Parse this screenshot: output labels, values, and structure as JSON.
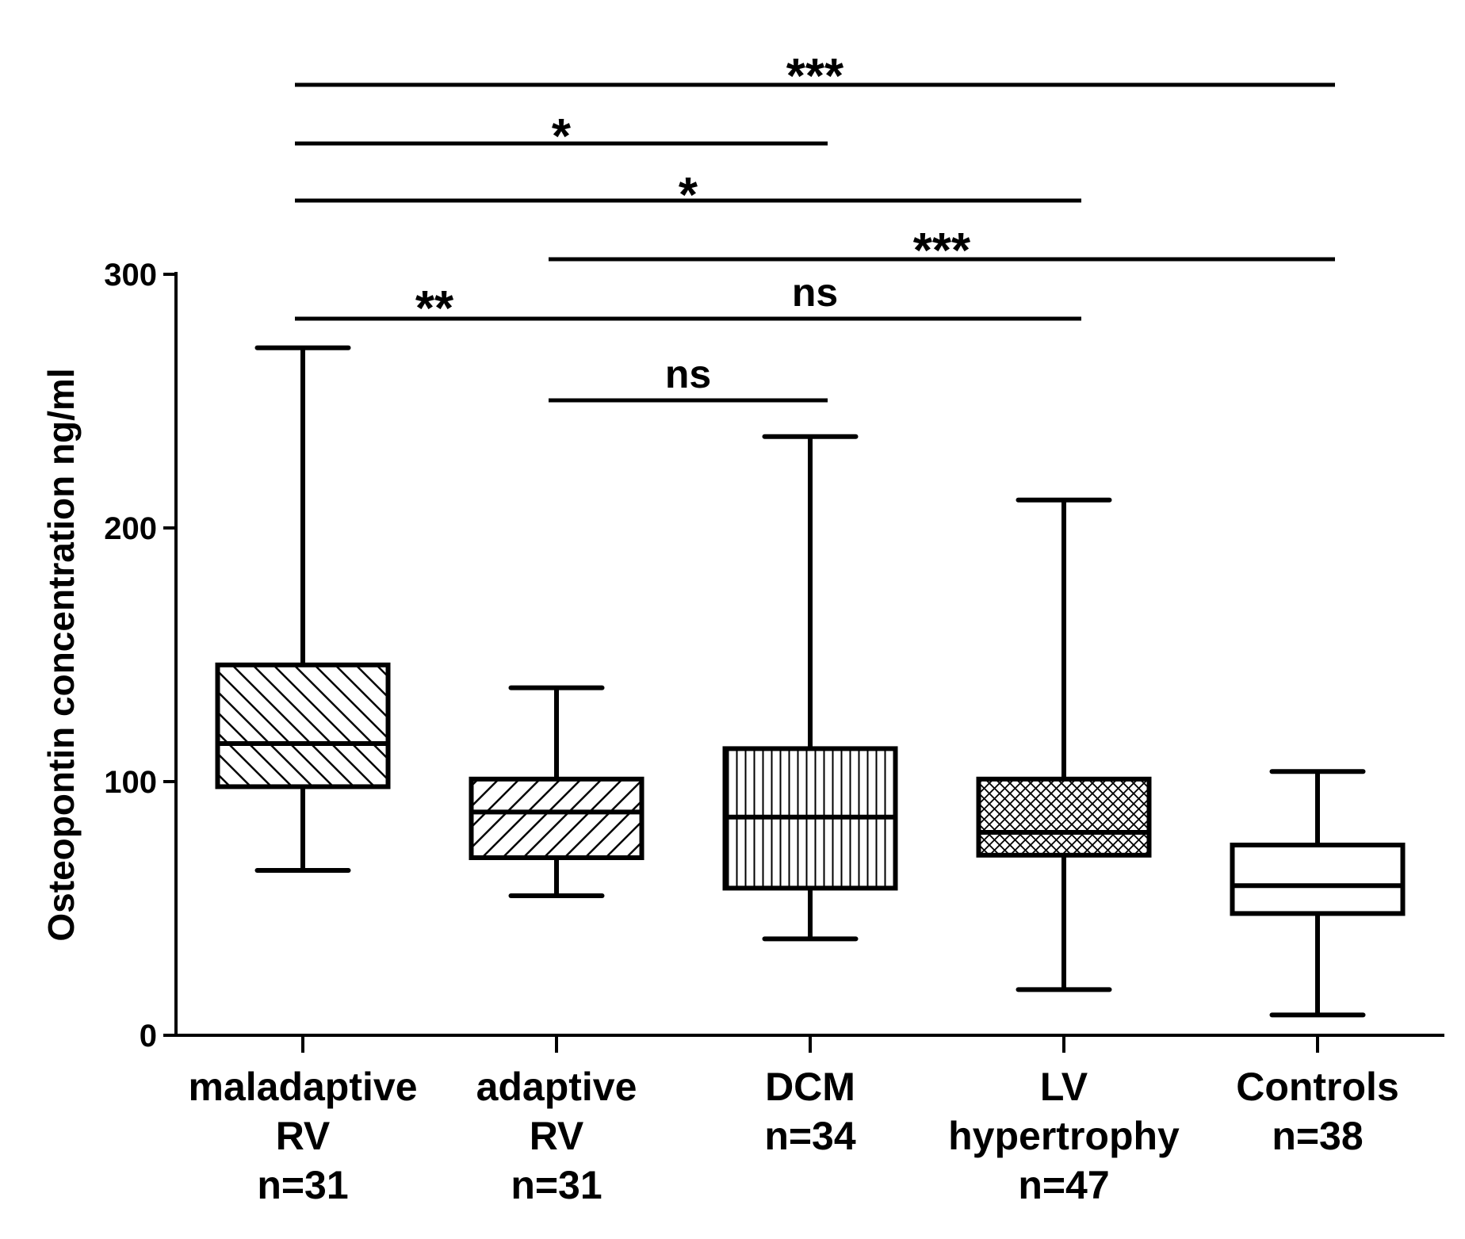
{
  "chart_data": {
    "type": "box",
    "title": "",
    "xlabel": "",
    "ylabel": "Osteopontin concentration ng/ml",
    "ylim": [
      0,
      300
    ],
    "yticks": [
      0,
      100,
      200,
      300
    ],
    "grid": false,
    "legend": "none",
    "categories": [
      {
        "label_lines": [
          "maladaptive",
          "RV",
          "n=31"
        ],
        "min": 65,
        "q1": 98,
        "median": 115,
        "q3": 146,
        "max": 271,
        "pattern": "diagonal-down"
      },
      {
        "label_lines": [
          "adaptive",
          "RV",
          "n=31"
        ],
        "min": 55,
        "q1": 70,
        "median": 88,
        "q3": 101,
        "max": 137,
        "pattern": "diagonal-up"
      },
      {
        "label_lines": [
          "DCM",
          "n=34"
        ],
        "min": 38,
        "q1": 58,
        "median": 86,
        "q3": 113,
        "max": 236,
        "pattern": "vertical"
      },
      {
        "label_lines": [
          "LV",
          "hypertrophy",
          "n=47"
        ],
        "min": 18,
        "q1": 71,
        "median": 80,
        "q3": 101,
        "max": 211,
        "pattern": "crosshatch"
      },
      {
        "label_lines": [
          "Controls",
          "n=38"
        ],
        "min": 8,
        "q1": 48,
        "median": 59,
        "q3": 75,
        "max": 104,
        "pattern": "none"
      }
    ],
    "comparisons": [
      {
        "from": 0,
        "to": 4,
        "label": "***"
      },
      {
        "from": 0,
        "to": 2,
        "label": "*"
      },
      {
        "from": 0,
        "to": 3,
        "label": "*"
      },
      {
        "from": 1,
        "to": 4,
        "label": "***"
      },
      {
        "from": 0,
        "to": 1,
        "label": "**"
      },
      {
        "from": 1,
        "to": 3,
        "label": "ns"
      },
      {
        "from": 1,
        "to": 2,
        "label": "ns"
      }
    ]
  }
}
